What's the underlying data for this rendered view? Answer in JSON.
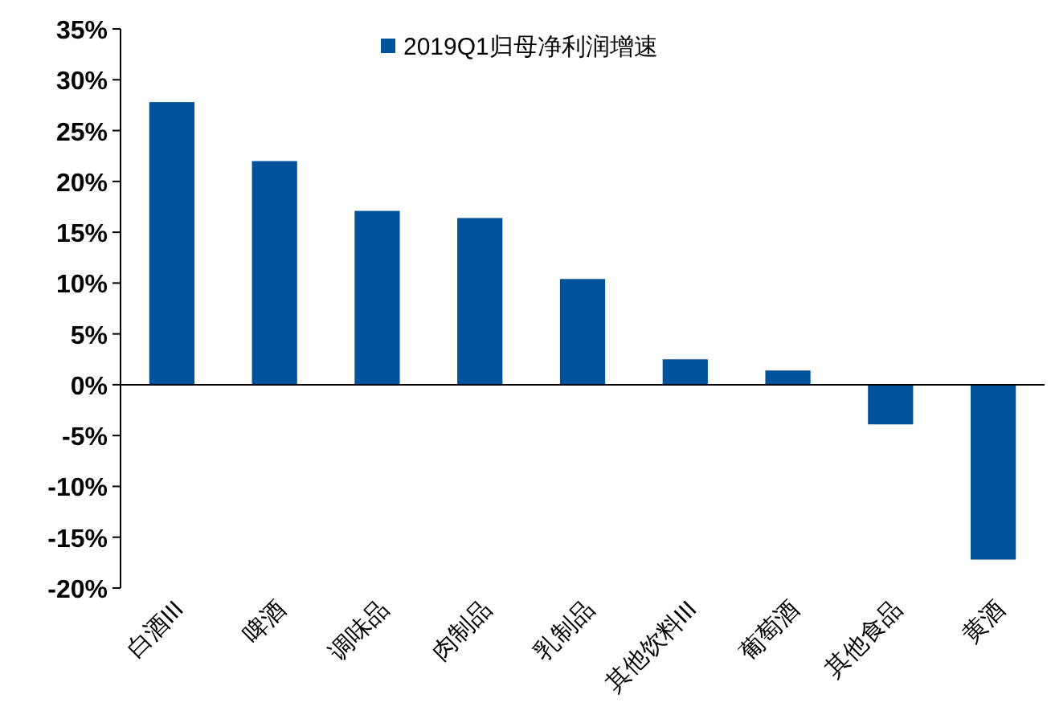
{
  "chart_data": {
    "type": "bar",
    "categories": [
      "白酒III",
      "啤酒",
      "调味品",
      "肉制品",
      "乳制品",
      "其他饮料III",
      "葡萄酒",
      "其他食品",
      "黄酒"
    ],
    "series": [
      {
        "name": "2019Q1归母净利润增速",
        "color": "#00539b",
        "values": [
          27.8,
          22.0,
          17.1,
          16.4,
          10.4,
          2.5,
          1.4,
          -3.9,
          -17.2
        ]
      }
    ],
    "ylim": [
      -20,
      35
    ],
    "yticks": [
      {
        "value": -20,
        "label": "-20%"
      },
      {
        "value": -15,
        "label": "-15%"
      },
      {
        "value": -10,
        "label": "-10%"
      },
      {
        "value": -5,
        "label": "-5%"
      },
      {
        "value": 0,
        "label": "0%"
      },
      {
        "value": 5,
        "label": "5%"
      },
      {
        "value": 10,
        "label": "10%"
      },
      {
        "value": 15,
        "label": "15%"
      },
      {
        "value": 20,
        "label": "20%"
      },
      {
        "value": 25,
        "label": "25%"
      },
      {
        "value": 30,
        "label": "30%"
      },
      {
        "value": 35,
        "label": "35%"
      }
    ],
    "legend": "top"
  }
}
